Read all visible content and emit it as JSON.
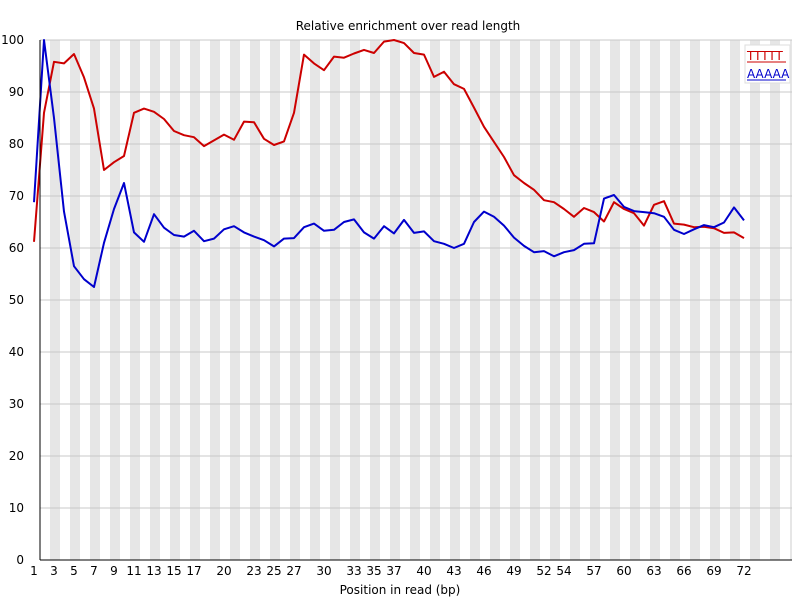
{
  "chart_data": {
    "type": "line",
    "title": "Relative enrichment over read length",
    "xlabel": "Position in read (bp)",
    "ylabel": "",
    "ylim": [
      0,
      100
    ],
    "xlim": [
      1,
      72
    ],
    "grid": "alternating vertical bands",
    "legend_position": "top-right",
    "x_tick_labels": [
      "1",
      "3",
      "5",
      "7",
      "9",
      "11",
      "13",
      "15",
      "17",
      "20",
      "23",
      "25",
      "27",
      "30",
      "33",
      "35",
      "37",
      "40",
      "43",
      "46",
      "49",
      "52",
      "54",
      "57",
      "60",
      "63",
      "66",
      "69",
      "72"
    ],
    "y_tick_labels": [
      "0",
      "10",
      "20",
      "30",
      "40",
      "50",
      "60",
      "70",
      "80",
      "90",
      "100"
    ],
    "x": [
      1,
      2,
      3,
      4,
      5,
      6,
      7,
      8,
      9,
      10,
      11,
      12,
      13,
      14,
      15,
      16,
      17,
      18,
      19,
      20,
      21,
      22,
      23,
      24,
      25,
      26,
      27,
      28,
      29,
      30,
      31,
      32,
      33,
      34,
      35,
      36,
      37,
      38,
      39,
      40,
      41,
      42,
      43,
      44,
      45,
      46,
      47,
      48,
      49,
      50,
      51,
      52,
      53,
      54,
      55,
      56,
      57,
      58,
      59,
      60,
      61,
      62,
      63,
      64,
      65,
      66,
      67,
      68,
      69,
      70,
      71,
      72
    ],
    "series": [
      {
        "name": "TTTTT",
        "color": "#cc0000",
        "values": [
          61.2,
          86.0,
          95.8,
          95.5,
          97.3,
          92.8,
          86.8,
          75.0,
          76.5,
          77.7,
          86.0,
          86.8,
          86.2,
          84.8,
          82.5,
          81.7,
          81.3,
          79.6,
          80.7,
          81.8,
          80.8,
          84.3,
          84.2,
          81.0,
          79.8,
          80.5,
          86.0,
          97.2,
          95.5,
          94.2,
          96.8,
          96.6,
          97.4,
          98.1,
          97.5,
          99.7,
          100.0,
          99.4,
          97.5,
          97.2,
          92.9,
          93.9,
          91.5,
          90.6,
          87.0,
          83.3,
          80.4,
          77.5,
          74.0,
          72.5,
          71.2,
          69.2,
          68.8,
          67.5,
          66.0,
          67.7,
          66.9,
          65.1,
          68.8,
          67.5,
          66.7,
          64.3,
          68.3,
          69.0,
          64.7,
          64.5,
          64.0,
          64.1,
          63.8,
          62.9,
          63.0,
          61.9
        ]
      },
      {
        "name": "AAAAA",
        "color": "#0000cc",
        "values": [
          68.8,
          100.0,
          85.0,
          67.0,
          56.5,
          54.0,
          52.5,
          61.0,
          67.5,
          72.5,
          63.0,
          61.2,
          66.5,
          63.9,
          62.5,
          62.2,
          63.3,
          61.3,
          61.8,
          63.6,
          64.2,
          63.0,
          62.2,
          61.5,
          60.3,
          61.8,
          61.9,
          64.0,
          64.7,
          63.3,
          63.5,
          65.0,
          65.5,
          63.0,
          61.8,
          64.2,
          62.8,
          65.4,
          62.9,
          63.2,
          61.3,
          60.8,
          60.0,
          60.8,
          65.0,
          67.0,
          66.0,
          64.3,
          62.0,
          60.4,
          59.2,
          59.4,
          58.4,
          59.2,
          59.6,
          60.8,
          60.9,
          69.5,
          70.2,
          67.9,
          67.1,
          66.9,
          66.7,
          66.0,
          63.5,
          62.7,
          63.6,
          64.4,
          64.0,
          64.9,
          67.8,
          65.3
        ]
      }
    ]
  }
}
